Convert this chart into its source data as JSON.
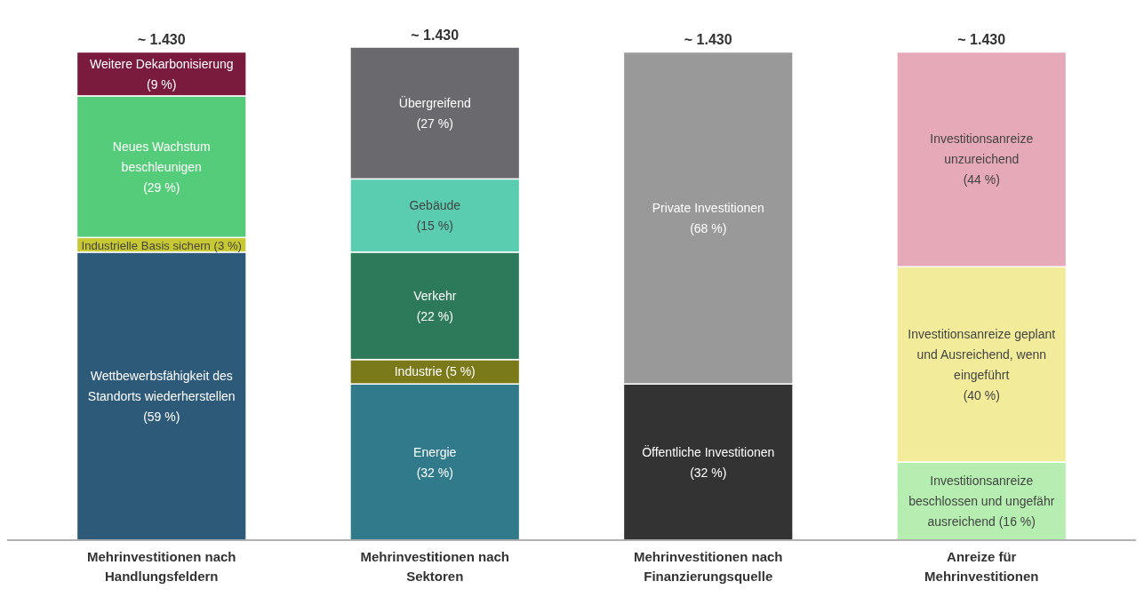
{
  "chart_data": {
    "type": "bar",
    "stacked": true,
    "categories": [
      "Mehrinvestitionen nach Handlungsfeldern",
      "Mehrinvestitionen nach Sektoren",
      "Mehrinvestitionen nach Finanzierungsquelle",
      "Anreize für Mehrinvestitionen"
    ],
    "annotations": [
      {
        "text": "~ 1.430",
        "x": "Mehrinvestitionen nach Handlungsfeldern",
        "y": 100
      },
      {
        "text": "~ 1.430",
        "x": "Mehrinvestitionen nach Sektoren",
        "y": 101
      },
      {
        "text": "~ 1.430",
        "x": "Mehrinvestitionen nach Finanzierungsquelle",
        "y": 100
      },
      {
        "text": "~ 1.430",
        "x": "Anreize für Mehrinvestitionen",
        "y": 100
      }
    ],
    "series": [
      {
        "name": "Wettbewerbsfähigkeit des Standorts wiederherstellen",
        "color": "#2e5a7a",
        "values": [
          59,
          null,
          null,
          null
        ],
        "value_labels": [
          "(59 %)",
          null,
          null,
          null
        ]
      },
      {
        "name": "Industrielle Basis sichern",
        "color": "#c8c832",
        "values": [
          3,
          null,
          null,
          null
        ],
        "value_labels": [
          "(3 %)",
          null,
          null,
          null
        ]
      },
      {
        "name": "Neues Wachstum beschleunigen",
        "color": "#55cc7a",
        "values": [
          29,
          null,
          null,
          null
        ],
        "value_labels": [
          "(29 %)",
          null,
          null,
          null
        ]
      },
      {
        "name": "Weitere Dekarbonisierung",
        "color": "#7a1a3c",
        "values": [
          9,
          null,
          null,
          null
        ],
        "value_labels": [
          "(9 %)",
          null,
          null,
          null
        ]
      },
      {
        "name": "Energie",
        "color": "#317a8c",
        "values": [
          null,
          32,
          null,
          null
        ],
        "value_labels": [
          null,
          "(32 %)",
          null,
          null
        ]
      },
      {
        "name": "Industrie",
        "color": "#7a7a1a",
        "values": [
          null,
          5,
          null,
          null
        ],
        "value_labels": [
          null,
          "(5 %)",
          null,
          null
        ]
      },
      {
        "name": "Verkehr",
        "color": "#2d7a5a",
        "values": [
          null,
          22,
          null,
          null
        ],
        "value_labels": [
          null,
          "(22 %)",
          null,
          null
        ]
      },
      {
        "name": "Gebäude",
        "color": "#5accb0",
        "values": [
          null,
          15,
          null,
          null
        ],
        "value_labels": [
          null,
          "(15 %)",
          null,
          null
        ]
      },
      {
        "name": "Übergreifend",
        "color": "#6a6a6e",
        "values": [
          null,
          27,
          null,
          null
        ],
        "value_labels": [
          null,
          "(27 %)",
          null,
          null
        ]
      },
      {
        "name": "Öffentliche Investitionen",
        "color": "#333333",
        "values": [
          null,
          null,
          32,
          null
        ],
        "value_labels": [
          null,
          null,
          "(32 %)",
          null
        ]
      },
      {
        "name": "Private Investitionen",
        "color": "#999999",
        "values": [
          null,
          null,
          68,
          null
        ],
        "value_labels": [
          null,
          null,
          "(68 %)",
          null
        ]
      },
      {
        "name": "Investitionsanreize beschlossen und ungefähr ausreichend",
        "color": "#b5eeb0",
        "values": [
          null,
          null,
          null,
          16
        ],
        "value_labels": [
          null,
          null,
          null,
          "(16 %)"
        ]
      },
      {
        "name": "Investitionsanreize geplant und Ausreichend, wenn eingeführt",
        "color": "#f2ec9a",
        "values": [
          null,
          null,
          null,
          40
        ],
        "value_labels": [
          null,
          null,
          null,
          "(40 %)"
        ]
      },
      {
        "name": "Investitionsanreize unzureichend",
        "color": "#e5a9b8",
        "values": [
          null,
          null,
          null,
          44
        ],
        "value_labels": [
          null,
          null,
          null,
          "(44 %)"
        ]
      }
    ]
  }
}
